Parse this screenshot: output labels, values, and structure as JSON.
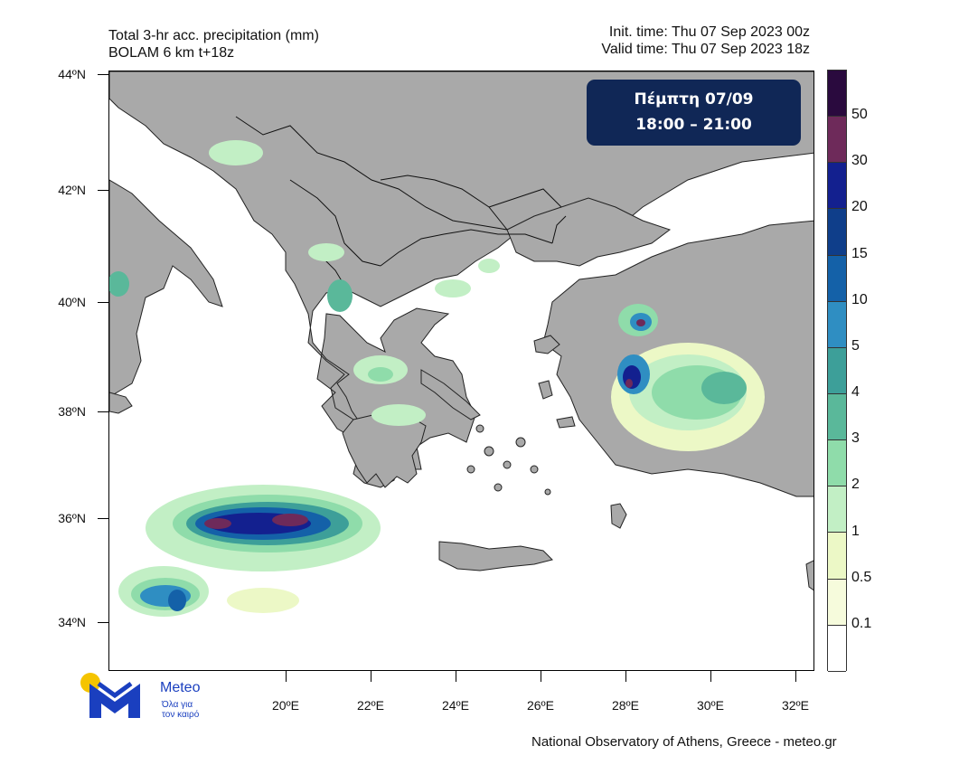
{
  "header": {
    "title_line1": "Total 3-hr acc. precipitation (mm)",
    "title_line2": "BOLAM 6 km t+18z",
    "init_time": "Init. time: Thu 07 Sep 2023 00z",
    "valid_time": "Valid time: Thu 07 Sep 2023 18z"
  },
  "date_box": {
    "line1": "Πέμπτη 07/09",
    "line2": "18:00 – 21:00"
  },
  "axes": {
    "lat_labels": [
      "44ºN",
      "42ºN",
      "40ºN",
      "38ºN",
      "36ºN",
      "34ºN"
    ],
    "lon_labels": [
      "20ºE",
      "22ºE",
      "24ºE",
      "26ºE",
      "28ºE",
      "30ºE",
      "32ºE"
    ]
  },
  "colorbar": {
    "labels": [
      "50",
      "30",
      "20",
      "15",
      "10",
      "5",
      "4",
      "3",
      "2",
      "1",
      "0.5",
      "0.1"
    ],
    "colors": [
      "#2a0a3e",
      "#6e2a5a",
      "#13208f",
      "#0f3e8a",
      "#1461a8",
      "#2f8ec2",
      "#3d9f99",
      "#5ab89a",
      "#8fdcaa",
      "#c2efc5",
      "#ecf8c6",
      "#f6fbdc",
      "#ffffff"
    ]
  },
  "logo": {
    "name": "Meteo",
    "tagline_line1": "Όλα για",
    "tagline_line2": "τον καιρό"
  },
  "footer": "National Observatory of Athens, Greece - meteo.gr",
  "colors": {
    "land": "#a9a9a9",
    "sea": "#ffffff",
    "brand_blue": "#1a3fbf",
    "brand_yellow": "#f5c400",
    "box_bg": "#102756"
  }
}
